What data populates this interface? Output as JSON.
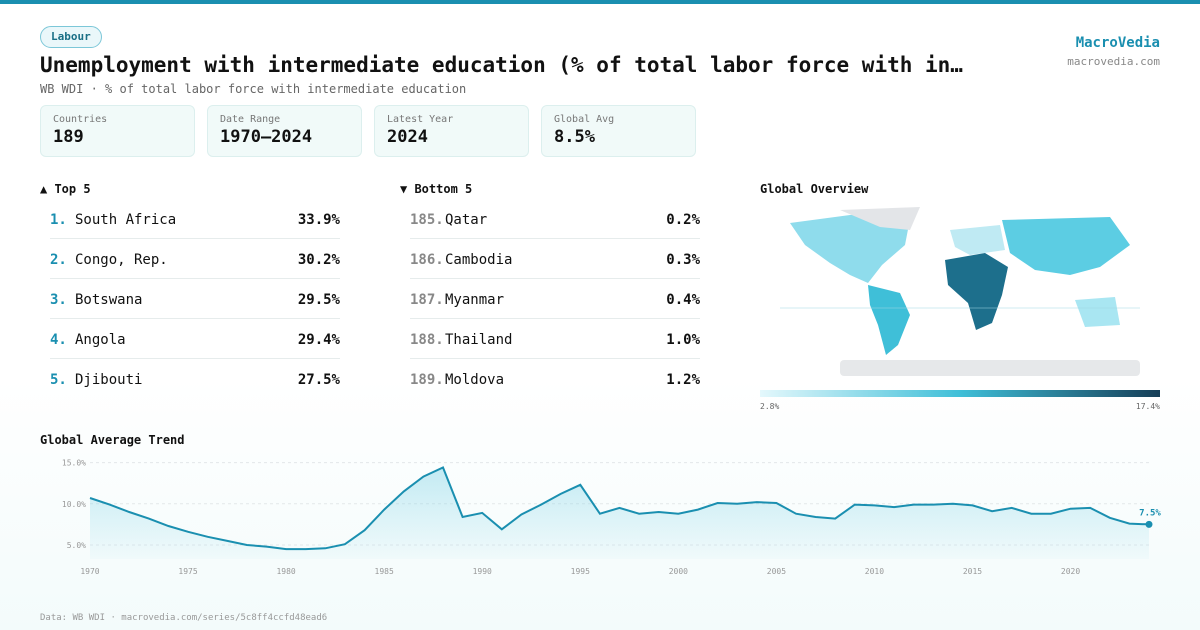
{
  "header": {
    "tag": "Labour",
    "title": "Unemployment with intermediate education (% of total labor force with in…",
    "subtitle": "WB WDI · % of total labor force with intermediate education",
    "brand": "MacroVedia",
    "site": "macrovedia.com"
  },
  "stats": [
    {
      "label": "Countries",
      "value": "189"
    },
    {
      "label": "Date Range",
      "value": "1970–2024"
    },
    {
      "label": "Latest Year",
      "value": "2024"
    },
    {
      "label": "Global Avg",
      "value": "8.5%"
    }
  ],
  "top": {
    "heading": "▲ Top 5",
    "items": [
      {
        "rank": "1.",
        "name": "South Africa",
        "value": "33.9%"
      },
      {
        "rank": "2.",
        "name": "Congo, Rep.",
        "value": "30.2%"
      },
      {
        "rank": "3.",
        "name": "Botswana",
        "value": "29.5%"
      },
      {
        "rank": "4.",
        "name": "Angola",
        "value": "29.4%"
      },
      {
        "rank": "5.",
        "name": "Djibouti",
        "value": "27.5%"
      }
    ]
  },
  "bottom": {
    "heading": "▼ Bottom 5",
    "items": [
      {
        "rank": "185.",
        "name": "Qatar",
        "value": "0.2%"
      },
      {
        "rank": "186.",
        "name": "Cambodia",
        "value": "0.3%"
      },
      {
        "rank": "187.",
        "name": "Myanmar",
        "value": "0.4%"
      },
      {
        "rank": "188.",
        "name": "Thailand",
        "value": "1.0%"
      },
      {
        "rank": "189.",
        "name": "Moldova",
        "value": "1.2%"
      }
    ]
  },
  "map": {
    "title": "Global Overview",
    "legend_min": "2.8%",
    "legend_max": "17.4%"
  },
  "chart_data": {
    "type": "line",
    "title": "Global Average Trend",
    "color": "#1a8fb0",
    "x": [
      1970,
      1971,
      1972,
      1973,
      1974,
      1975,
      1976,
      1977,
      1978,
      1979,
      1980,
      1981,
      1982,
      1983,
      1984,
      1985,
      1986,
      1987,
      1988,
      1989,
      1990,
      1991,
      1992,
      1993,
      1994,
      1995,
      1996,
      1997,
      1998,
      1999,
      2000,
      2001,
      2002,
      2003,
      2004,
      2005,
      2006,
      2007,
      2008,
      2009,
      2010,
      2011,
      2012,
      2013,
      2014,
      2015,
      2016,
      2017,
      2018,
      2019,
      2020,
      2021,
      2022,
      2023,
      2024
    ],
    "values": [
      10.7,
      9.9,
      9.0,
      8.2,
      7.3,
      6.6,
      6.0,
      5.5,
      5.0,
      4.8,
      4.5,
      4.5,
      4.6,
      5.1,
      6.8,
      9.3,
      11.5,
      13.3,
      14.4,
      8.4,
      8.9,
      6.9,
      8.7,
      9.9,
      11.2,
      12.3,
      8.8,
      9.5,
      8.8,
      9.0,
      8.8,
      9.3,
      10.1,
      10.0,
      10.2,
      10.1,
      8.8,
      8.4,
      8.2,
      9.9,
      9.8,
      9.6,
      9.9,
      9.9,
      10.0,
      9.8,
      9.1,
      9.5,
      8.8,
      8.8,
      9.4,
      9.5,
      8.3,
      7.6,
      7.5
    ],
    "value_labels": [
      null,
      null,
      null,
      null,
      null,
      null,
      null,
      null,
      null,
      null,
      null,
      null,
      null,
      null,
      null,
      null,
      null,
      null,
      null,
      null,
      null,
      null,
      null,
      null,
      null,
      null,
      null,
      null,
      null,
      null,
      null,
      null,
      null,
      null,
      null,
      null,
      null,
      null,
      null,
      null,
      null,
      null,
      null,
      null,
      null,
      null,
      null,
      null,
      null,
      null,
      null,
      null,
      null,
      null,
      "7.5%"
    ],
    "xlim": [
      1970,
      2024
    ],
    "xticks": [
      1970,
      1975,
      1980,
      1985,
      1990,
      1995,
      2000,
      2005,
      2010,
      2015,
      2020
    ],
    "ylim": [
      3.3,
      15.8
    ],
    "yticks": [
      {
        "value": 5,
        "label": "5.0%"
      },
      {
        "value": 10,
        "label": "10.0%"
      },
      {
        "value": 15,
        "label": "15.0%"
      }
    ],
    "grid": true
  },
  "footer": "Data: WB WDI · macrovedia.com/series/5c8ff4ccfd48ead6"
}
